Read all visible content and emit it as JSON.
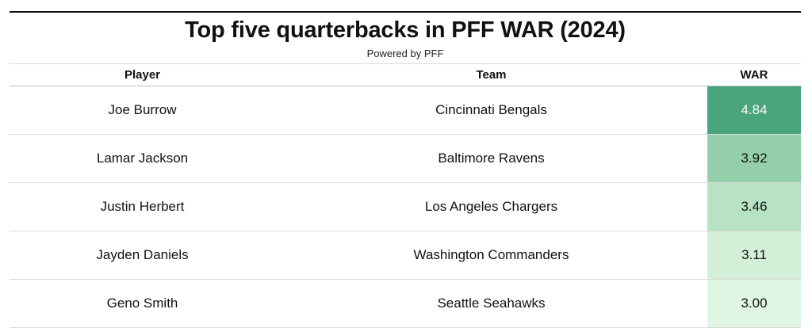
{
  "title": "Top five quarterbacks in PFF WAR (2024)",
  "subtitle": "Powered by PFF",
  "headers": {
    "player": "Player",
    "team": "Team",
    "war": "WAR"
  },
  "chart_data": {
    "type": "table",
    "title": "Top five quarterbacks in PFF WAR (2024)",
    "subtitle": "Powered by PFF",
    "columns": [
      "Player",
      "Team",
      "WAR"
    ],
    "rows": [
      {
        "player": "Joe Burrow",
        "team": "Cincinnati Bengals",
        "war": "4.84",
        "value": 4.84,
        "color": "#4aa57c",
        "text_color": "#ffffff"
      },
      {
        "player": "Lamar Jackson",
        "team": "Baltimore Ravens",
        "war": "3.92",
        "value": 3.92,
        "color": "#93cfa9",
        "text_color": "#111111"
      },
      {
        "player": "Justin Herbert",
        "team": "Los Angeles Chargers",
        "war": "3.46",
        "value": 3.46,
        "color": "#b8e2c4",
        "text_color": "#111111"
      },
      {
        "player": "Jayden Daniels",
        "team": "Washington Commanders",
        "war": "3.11",
        "value": 3.11,
        "color": "#d3efd8",
        "text_color": "#111111"
      },
      {
        "player": "Geno Smith",
        "team": "Seattle Seahawks",
        "war": "3.00",
        "value": 3.0,
        "color": "#def5e1",
        "text_color": "#111111"
      }
    ]
  }
}
